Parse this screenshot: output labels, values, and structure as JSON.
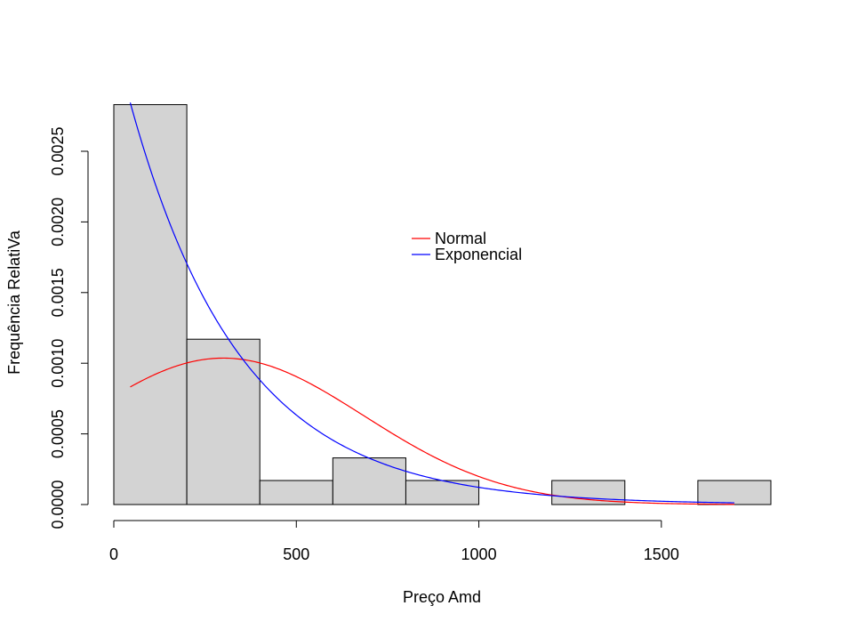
{
  "chart_data": {
    "type": "histogram",
    "title": "",
    "xlabel": "Preço Amd",
    "ylabel": "Frequência RelatiVa",
    "xlim": [
      0,
      1800
    ],
    "ylim": [
      0,
      0.0029
    ],
    "bins": [
      {
        "start": 0,
        "end": 200,
        "density": 0.00283
      },
      {
        "start": 200,
        "end": 400,
        "density": 0.00117
      },
      {
        "start": 400,
        "end": 600,
        "density": 0.00017
      },
      {
        "start": 600,
        "end": 800,
        "density": 0.00033
      },
      {
        "start": 800,
        "end": 1000,
        "density": 0.00017
      },
      {
        "start": 1000,
        "end": 1200,
        "density": 0
      },
      {
        "start": 1200,
        "end": 1400,
        "density": 0.00017
      },
      {
        "start": 1400,
        "end": 1600,
        "density": 0
      },
      {
        "start": 1600,
        "end": 1800,
        "density": 0.00017
      }
    ],
    "bar_color": "#d3d3d3",
    "x_ticks": [
      0,
      500,
      1000,
      1500
    ],
    "x_tick_labels": [
      "0",
      "500",
      "1000",
      "1500"
    ],
    "y_ticks": [
      0,
      0.0005,
      0.001,
      0.0015,
      0.002,
      0.0025
    ],
    "y_tick_labels": [
      "0.0000",
      "0.0005",
      "0.0010",
      "0.0015",
      "0.0020",
      "0.0025"
    ],
    "series": [
      {
        "name": "Normal",
        "color": "#ff0000",
        "kind": "normal_density",
        "mean": 300,
        "sd": 385,
        "x_range": [
          45,
          1700
        ]
      },
      {
        "name": "Exponencial",
        "color": "#0000ff",
        "kind": "exponential_density",
        "rate": 0.0033,
        "x_range": [
          45,
          1700
        ]
      }
    ],
    "legend_position": "center-right"
  }
}
